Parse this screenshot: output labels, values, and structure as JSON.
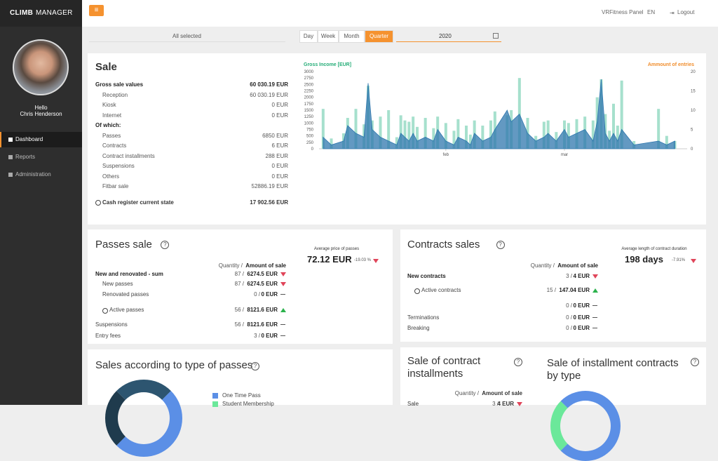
{
  "sidebar": {
    "logo_bold": "CLIMB",
    "logo_rest": "MANAGER",
    "greeting": "Hello",
    "user": "Chris Henderson",
    "menu": [
      "Dashboard",
      "Reports",
      "Administration"
    ],
    "active_menu": 0
  },
  "topbar": {
    "panel": "VRFitness Panel",
    "language": "EN",
    "logout": "Logout"
  },
  "filters": {
    "selection": "All selected",
    "periods": [
      "Day",
      "Week",
      "Month",
      "Quarter"
    ],
    "active_period": 3,
    "date": "2020"
  },
  "sale": {
    "title": "Sale",
    "rows": [
      {
        "label": "Gross sale values",
        "value": "60 030.19 EUR",
        "level": 0
      },
      {
        "label": "Reception",
        "value": "60 030.19 EUR",
        "level": 1
      },
      {
        "label": "Kiosk",
        "value": "0 EUR",
        "level": 1
      },
      {
        "label": "Internet",
        "value": "0 EUR",
        "level": 1
      },
      {
        "label": "Of which:",
        "level": 0
      },
      {
        "label": "Passes",
        "value": "6850 EUR",
        "level": 1
      },
      {
        "label": "Contracts",
        "value": "6 EUR",
        "level": 1
      },
      {
        "label": "Contract installments",
        "value": "288 EUR",
        "level": 1
      },
      {
        "label": "Suspensions",
        "value": "0 EUR",
        "level": 1
      },
      {
        "label": "Others",
        "value": "0 EUR",
        "level": 1
      },
      {
        "label": "Fitbar sale",
        "value": "52886.19 EUR",
        "level": 1
      }
    ],
    "cash_label": "Cash register current state",
    "cash_value": "17 902.56 EUR"
  },
  "chart_data": {
    "type": "bar",
    "ylabel": "Gross Income [EUR]",
    "y2label": "Ammount of entries",
    "x": [
      2,
      4,
      7,
      8,
      10,
      12,
      13,
      14,
      16,
      18,
      20,
      21,
      22,
      23,
      24,
      25,
      27,
      29,
      30,
      32,
      34,
      35,
      37,
      38,
      39,
      41,
      43,
      44,
      47,
      48,
      50,
      52,
      54,
      56,
      57,
      59,
      61,
      62,
      64,
      66,
      68,
      69,
      70,
      71,
      72,
      73,
      74,
      75,
      78,
      84,
      86,
      88
    ],
    "xlim": [
      1,
      91
    ],
    "xticks": [
      {
        "value": 32,
        "label": "feb"
      },
      {
        "value": 61,
        "label": "mar"
      }
    ],
    "ylim": [
      0,
      3000
    ],
    "yticks": [
      0,
      250,
      500,
      750,
      1000,
      1250,
      1500,
      1750,
      2000,
      2250,
      2500,
      2750,
      3000
    ],
    "y2lim": [
      0,
      20
    ],
    "y2ticks": [
      0,
      5,
      10,
      15,
      20
    ],
    "series": [
      {
        "name": "Gross Income [EUR]",
        "type": "bar",
        "color": "#a6e0cd",
        "values": [
          1550,
          400,
          600,
          1200,
          1550,
          950,
          2450,
          1100,
          1250,
          1500,
          450,
          1300,
          1100,
          1050,
          1250,
          850,
          1200,
          800,
          1250,
          1000,
          700,
          1150,
          900,
          550,
          1100,
          900,
          1100,
          1450,
          1300,
          1500,
          2750,
          1200,
          500,
          1050,
          1100,
          650,
          1100,
          1000,
          1150,
          1250,
          1100,
          2000,
          2700,
          1350,
          700,
          1750,
          900,
          2650,
          300,
          1550,
          500,
          300
        ]
      },
      {
        "name": "Ammount of entries",
        "type": "area",
        "axis": "y2",
        "color": "#2f77ae",
        "values": [
          3,
          1,
          2,
          6,
          4,
          3,
          17,
          5,
          3,
          2,
          1,
          4,
          3,
          2,
          4,
          2,
          3,
          2,
          5,
          2,
          1,
          3,
          2,
          1,
          4,
          2,
          3,
          5,
          10,
          7,
          9,
          4,
          2,
          3,
          4,
          2,
          5,
          3,
          4,
          5,
          2,
          7,
          18,
          4,
          2,
          4,
          2,
          5,
          1,
          2,
          1,
          2
        ]
      }
    ]
  },
  "passes": {
    "title": "Passes sale",
    "avg_label": "Average price of passes",
    "avg_value": "72.12 EUR",
    "avg_delta": "-19.03 %",
    "avg_trend": "down",
    "head_quantity": "Quantity /",
    "head_amount": "Amount of sale",
    "rows": [
      {
        "label": "New and renovated - sum",
        "quantity": "87 /",
        "amount": "6274.5 EUR",
        "trend": "down",
        "level": 0
      },
      {
        "label": "New passes",
        "quantity": "87 /",
        "amount": "6274.5 EUR",
        "trend": "down",
        "level": 1
      },
      {
        "label": "Renovated passes",
        "quantity": "0 /",
        "amount": "0 EUR",
        "trend": "none",
        "level": 1
      },
      {
        "label": "Active passes",
        "quantity": "56 /",
        "amount": "8121.6 EUR",
        "trend": "up",
        "level": 1,
        "icon": "clock"
      },
      {
        "label": "Suspensions",
        "quantity": "56 /",
        "amount": "8121.6 EUR",
        "trend": "none",
        "level": 2
      },
      {
        "label": "Entry fees",
        "quantity": "3 /",
        "amount": "0 EUR",
        "trend": "none",
        "level": 2
      }
    ]
  },
  "contracts": {
    "title": "Contracts sales",
    "avg_label": "Average length of contract duration",
    "avg_value": "198 days",
    "avg_delta": "-7.91%",
    "avg_trend": "down",
    "head_quantity": "Quantity /",
    "head_amount": "Amount of sale",
    "rows": [
      {
        "label": "New contracts",
        "quantity": "3 /",
        "amount": "4 EUR",
        "trend": "down",
        "level": 0
      },
      {
        "label": "Active contracts",
        "quantity": "15 /",
        "amount": "147.04 EUR",
        "trend": "up",
        "level": 1,
        "icon": "clock"
      },
      {
        "quantity": "0 /",
        "amount": "0 EUR",
        "trend": "none",
        "level": 2
      },
      {
        "label": "Terminations",
        "quantity": "0 /",
        "amount": "0 EUR",
        "trend": "none",
        "level": 2
      },
      {
        "label": "Breaking",
        "quantity": "0 /",
        "amount": "0 EUR",
        "trend": "none",
        "level": 2
      }
    ]
  },
  "pass_types": {
    "title": "Sales according to type of passes",
    "legend": [
      {
        "name": "One Time Pass",
        "color": "#5b8fe6"
      },
      {
        "name": "Student Membership",
        "color": "#6be89a"
      }
    ]
  },
  "installments": {
    "title_line1": "Sale of contract",
    "title_line2": "installments",
    "head_quantity": "Quantity /",
    "head_amount": "Amount of sale",
    "row": {
      "label": "Sale",
      "quantity": "3 /",
      "amount": "4 EUR",
      "trend": "down"
    }
  },
  "installment_types": {
    "title_line1": "Sale of installment contracts",
    "title_line2": "by type"
  }
}
